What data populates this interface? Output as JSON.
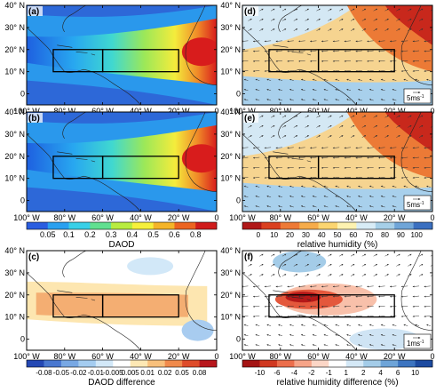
{
  "chart_data": {
    "type": "heatmap",
    "panels": [
      {
        "label": "(a)",
        "field": "DAOD",
        "wind_arrows": false,
        "reference_vector": ""
      },
      {
        "label": "(d)",
        "field": "relative humidity",
        "wind_arrows": true,
        "reference_vector": "5ms"
      },
      {
        "label": "(b)",
        "field": "DAOD",
        "wind_arrows": false,
        "reference_vector": ""
      },
      {
        "label": "(e)",
        "field": "relative humidity",
        "wind_arrows": true,
        "reference_vector": "5ms"
      },
      {
        "label": "(c)",
        "field": "DAOD difference",
        "wind_arrows": false,
        "reference_vector": ""
      },
      {
        "label": "(f)",
        "field": "relative humidity difference",
        "wind_arrows": true,
        "reference_vector": "1ms"
      }
    ],
    "x_ticks": [
      "100° W",
      "80° W",
      "60° W",
      "40° W",
      "20° W",
      "0"
    ],
    "y_ticks": [
      "0",
      "10° N",
      "20° N",
      "30° N",
      "40° N"
    ],
    "xlim": [
      -100,
      0
    ],
    "ylim": [
      -5,
      40
    ],
    "boxes": [
      {
        "lon": [
          -86,
          -60
        ],
        "lat": [
          10,
          20
        ]
      },
      {
        "lon": [
          -60,
          -20
        ],
        "lat": [
          10,
          20
        ]
      }
    ],
    "colorbars": [
      {
        "title": "DAOD",
        "ticks": [
          "0.05",
          "0.1",
          "0.2",
          "0.3",
          "0.4",
          "0.5",
          "0.6",
          "0.8"
        ],
        "colors": [
          "#2a5de0",
          "#2aa0f0",
          "#39d0e8",
          "#60e090",
          "#b8ec40",
          "#f6f03c",
          "#f4b428",
          "#ec6420",
          "#d01c1c"
        ]
      },
      {
        "title": "relative humidity (%)",
        "ticks": [
          "0",
          "10",
          "20",
          "30",
          "40",
          "50",
          "60",
          "70",
          "80",
          "90",
          "100"
        ],
        "colors": [
          "#b01818",
          "#da4020",
          "#ee7a36",
          "#f6ac4a",
          "#fbd570",
          "#fdf2b0",
          "#d8ecf6",
          "#a6cfe8",
          "#6fa5d8",
          "#3a6fc0"
        ]
      },
      {
        "title": "DAOD difference",
        "ticks": [
          "-0.08",
          "-0.05",
          "-0.02",
          "-0.01",
          "-0.005",
          "0.005",
          "0.01",
          "0.02",
          "0.05",
          "0.08"
        ],
        "colors": [
          "#2448b4",
          "#4a78d0",
          "#78a8e4",
          "#a4ccf0",
          "#d2e8f8",
          "#ffffff",
          "#fde8b4",
          "#f8c07c",
          "#f08a4c",
          "#de4c2a",
          "#b8161c"
        ]
      },
      {
        "title": "relative humidity difference (%)",
        "ticks": [
          "-10",
          "-6",
          "-4",
          "-2",
          "-1",
          "1",
          "2",
          "4",
          "6",
          "10"
        ],
        "colors": [
          "#a41414",
          "#d03820",
          "#ec6e4c",
          "#f6a488",
          "#fcd6c6",
          "#ffffff",
          "#d4e8f6",
          "#a4cce8",
          "#6ea4d8",
          "#3c74c0",
          "#1c4aa0"
        ]
      }
    ]
  }
}
